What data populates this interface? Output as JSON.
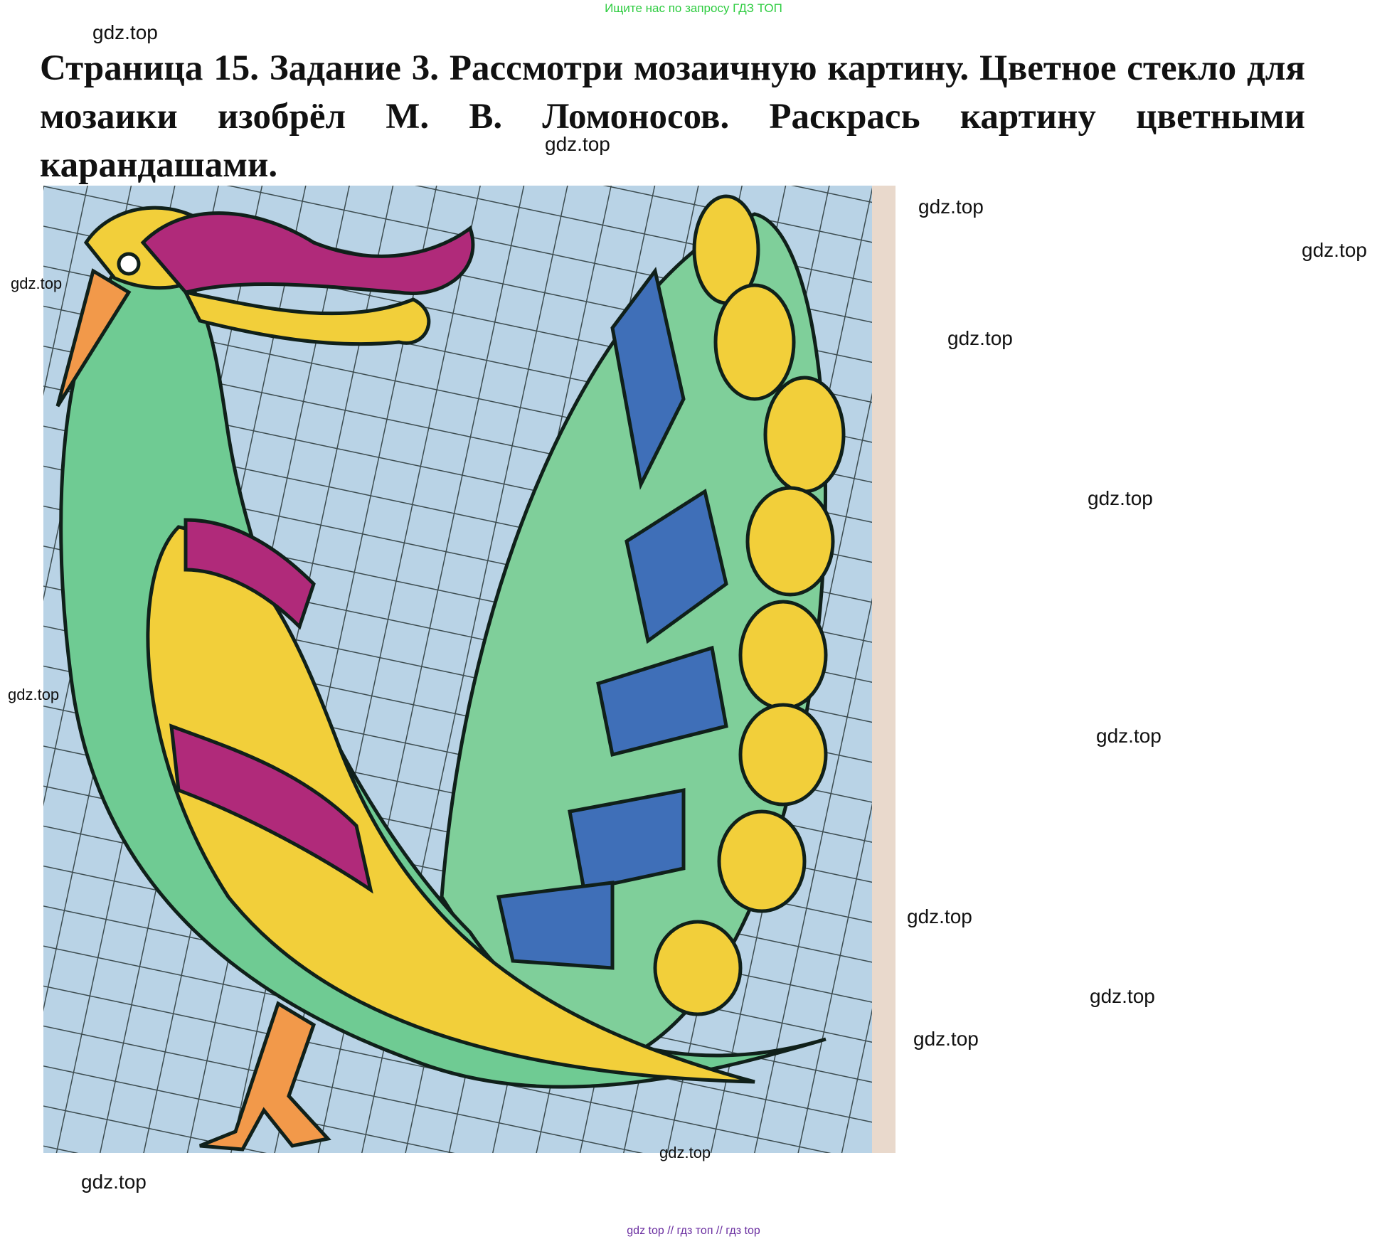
{
  "header": {
    "notice": "Ищите нас по запросу ГДЗ ТОП",
    "title": "Страница 15. Задание 3. Рассмотри мозаичную картину. Цветное стекло для мозаики изобрёл М. В. Ломоносов. Раскрась картину цветными карандашами."
  },
  "watermarks": [
    "gdz.top",
    "gdz.top",
    "gdz.top",
    "gdz.top",
    "gdz.top",
    "gdz.top",
    "gdz.top",
    "gdz.top",
    "gdz.top",
    "gdz.top",
    "gdz.top",
    "gdz.top",
    "gdz.top",
    "gdz.top"
  ],
  "footer": "gdz top  //  гдз топ  //  гдз top"
}
